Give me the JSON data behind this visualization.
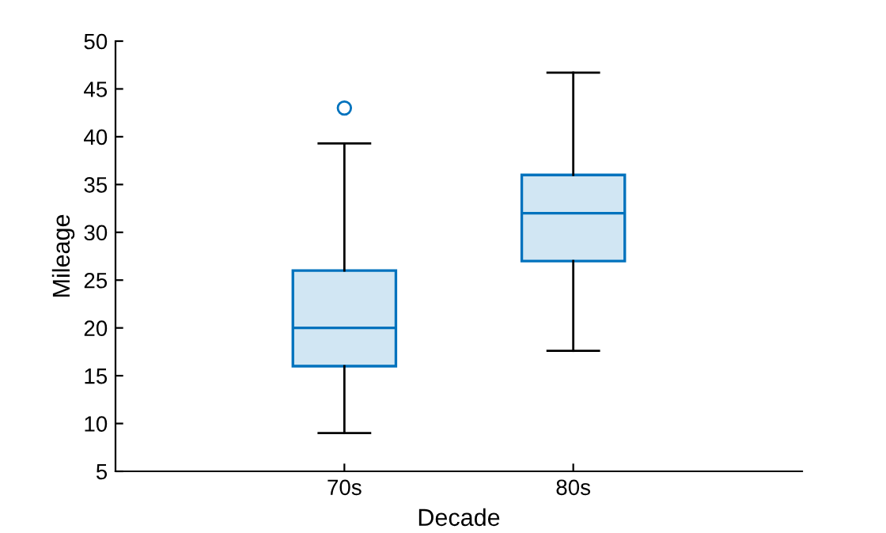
{
  "chart_data": {
    "type": "box",
    "xlabel": "Decade",
    "ylabel": "Mileage",
    "categories": [
      "70s",
      "80s"
    ],
    "boxes": [
      {
        "low": 9,
        "q1": 16,
        "median": 20,
        "q3": 26,
        "high": 39.3,
        "outliers": [
          43
        ]
      },
      {
        "low": 17.6,
        "q1": 27,
        "median": 32,
        "q3": 36,
        "high": 46.7
      }
    ],
    "color": "#0072bd",
    "ylim": [
      5,
      50
    ],
    "yticks": [
      5,
      10,
      15,
      20,
      25,
      30,
      35,
      40,
      45,
      50
    ],
    "grid": false
  }
}
